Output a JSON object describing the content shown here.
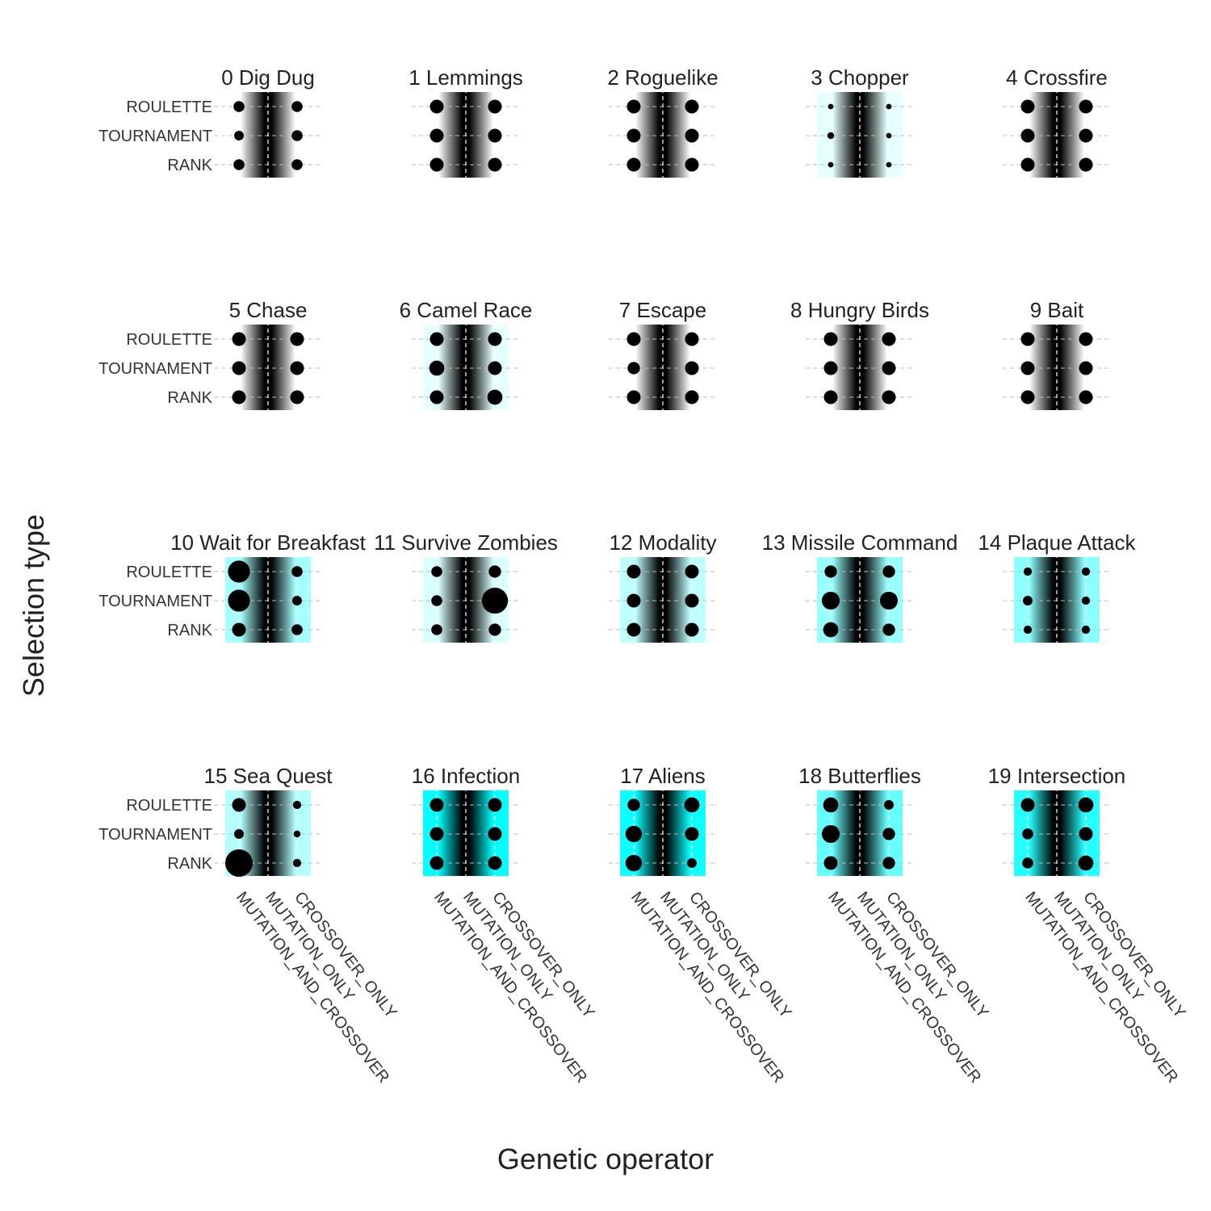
{
  "chart_data": {
    "type": "scatter",
    "xlabel": "Genetic operator",
    "ylabel": "Selection type",
    "x_categories": [
      "MUTATION_AND_CROSSOVER",
      "MUTATION_ONLY",
      "CROSSOVER_ONLY"
    ],
    "y_categories": [
      "ROULETTE",
      "TOURNAMENT",
      "RANK"
    ],
    "size_scale": "relative point size (1 = typical)",
    "background_gradient": "black center to cyan edges; cyan intensity per panel",
    "colors": {
      "point": "#000000",
      "center": "#000000",
      "edge": "#00ffff"
    },
    "panels": [
      {
        "title": "0 Dig Dug",
        "cyan": 0.0,
        "sizes": [
          [
            0.8,
            0,
            0.8
          ],
          [
            0.7,
            0,
            0.8
          ],
          [
            0.8,
            0,
            0.8
          ]
        ]
      },
      {
        "title": "1 Lemmings",
        "cyan": 0.0,
        "sizes": [
          [
            1.0,
            0,
            1.0
          ],
          [
            1.0,
            0,
            1.0
          ],
          [
            1.0,
            0,
            1.0
          ]
        ]
      },
      {
        "title": "2 Roguelike",
        "cyan": 0.0,
        "sizes": [
          [
            1.0,
            0,
            1.0
          ],
          [
            1.0,
            0,
            1.0
          ],
          [
            1.0,
            0,
            1.0
          ]
        ]
      },
      {
        "title": "3 Chopper",
        "cyan": 0.1,
        "sizes": [
          [
            0.4,
            0,
            0.4
          ],
          [
            0.5,
            0,
            0.4
          ],
          [
            0.4,
            0,
            0.4
          ]
        ]
      },
      {
        "title": "4 Crossfire",
        "cyan": 0.0,
        "sizes": [
          [
            1.0,
            0,
            1.0
          ],
          [
            1.0,
            0,
            1.0
          ],
          [
            1.0,
            0,
            1.0
          ]
        ]
      },
      {
        "title": "5 Chase",
        "cyan": 0.0,
        "sizes": [
          [
            1.0,
            0,
            1.0
          ],
          [
            1.0,
            0,
            1.0
          ],
          [
            1.0,
            0,
            1.0
          ]
        ]
      },
      {
        "title": "6 Camel Race",
        "cyan": 0.1,
        "sizes": [
          [
            1.0,
            0,
            1.0
          ],
          [
            1.1,
            0,
            1.0
          ],
          [
            1.0,
            0,
            1.1
          ]
        ]
      },
      {
        "title": "7 Escape",
        "cyan": 0.0,
        "sizes": [
          [
            1.0,
            0,
            1.0
          ],
          [
            0.9,
            0,
            1.0
          ],
          [
            1.0,
            0,
            1.0
          ]
        ]
      },
      {
        "title": "8 Hungry Birds",
        "cyan": 0.0,
        "sizes": [
          [
            1.0,
            0,
            1.0
          ],
          [
            1.0,
            0,
            1.0
          ],
          [
            1.0,
            0,
            1.0
          ]
        ]
      },
      {
        "title": "9 Bait",
        "cyan": 0.0,
        "sizes": [
          [
            1.0,
            0,
            1.0
          ],
          [
            1.0,
            0,
            1.0
          ],
          [
            1.0,
            0,
            1.0
          ]
        ]
      },
      {
        "title": "10 Wait for Breakfast",
        "cyan": 0.35,
        "sizes": [
          [
            1.6,
            0,
            0.8
          ],
          [
            1.6,
            0,
            0.7
          ],
          [
            1.0,
            0,
            0.8
          ]
        ]
      },
      {
        "title": "11 Survive Zombies",
        "cyan": 0.15,
        "sizes": [
          [
            0.8,
            0,
            0.9
          ],
          [
            0.8,
            0,
            1.9
          ],
          [
            0.8,
            0,
            0.9
          ]
        ]
      },
      {
        "title": "12 Modality",
        "cyan": 0.25,
        "sizes": [
          [
            1.0,
            0,
            1.0
          ],
          [
            1.0,
            0,
            1.0
          ],
          [
            1.0,
            0,
            1.0
          ]
        ]
      },
      {
        "title": "13 Missile Command",
        "cyan": 0.4,
        "sizes": [
          [
            0.9,
            0,
            0.9
          ],
          [
            1.3,
            0,
            1.3
          ],
          [
            1.1,
            0,
            0.9
          ]
        ]
      },
      {
        "title": "14 Plaque Attack",
        "cyan": 0.45,
        "sizes": [
          [
            0.6,
            0,
            0.6
          ],
          [
            0.7,
            0,
            0.6
          ],
          [
            0.6,
            0,
            0.6
          ]
        ]
      },
      {
        "title": "15 Sea Quest",
        "cyan": 0.3,
        "sizes": [
          [
            1.0,
            0,
            0.6
          ],
          [
            0.7,
            0,
            0.5
          ],
          [
            2.0,
            0,
            0.6
          ]
        ]
      },
      {
        "title": "16 Infection",
        "cyan": 1.0,
        "sizes": [
          [
            1.0,
            0,
            1.0
          ],
          [
            1.0,
            0,
            1.0
          ],
          [
            1.0,
            0,
            1.0
          ]
        ]
      },
      {
        "title": "17 Aliens",
        "cyan": 0.95,
        "sizes": [
          [
            0.9,
            0,
            1.1
          ],
          [
            1.2,
            0,
            1.0
          ],
          [
            1.2,
            0,
            0.7
          ]
        ]
      },
      {
        "title": "18 Butterflies",
        "cyan": 0.6,
        "sizes": [
          [
            1.1,
            0,
            0.7
          ],
          [
            1.3,
            0,
            0.9
          ],
          [
            1.0,
            0,
            0.9
          ]
        ]
      },
      {
        "title": "19 Intersection",
        "cyan": 0.85,
        "sizes": [
          [
            1.0,
            0,
            1.1
          ],
          [
            0.8,
            0,
            1.0
          ],
          [
            0.8,
            0,
            1.1
          ]
        ]
      }
    ]
  }
}
